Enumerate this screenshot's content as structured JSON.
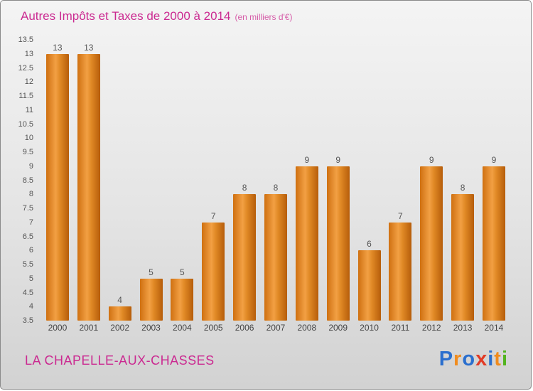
{
  "header": {
    "title": "Autres Impôts et Taxes de 2000 à 2014",
    "subtitle": "(en milliers d'€)"
  },
  "footer": {
    "location": "LA CHAPELLE-AUX-CHASSES",
    "logo_letters": [
      {
        "char": "P",
        "color": "#2b6fce"
      },
      {
        "char": "r",
        "color": "#f08c1e"
      },
      {
        "char": "o",
        "color": "#2b6fce"
      },
      {
        "char": "x",
        "color": "#e23b26"
      },
      {
        "char": "i",
        "color": "#2b6fce"
      },
      {
        "char": "t",
        "color": "#f08c1e"
      },
      {
        "char": "i",
        "color": "#52b41e"
      }
    ]
  },
  "colors": {
    "title_text": "#cb2a91",
    "bar_left": "#cf7011",
    "bar_highlight": "#f2a044",
    "bar_right": "#b65d0a",
    "axis_text": "#555555",
    "background_top": "#f4f4f4",
    "background_bottom": "#d2d2d2"
  },
  "chart_data": {
    "type": "bar",
    "title": "Autres Impôts et Taxes de 2000 à 2014",
    "subtitle": "(en milliers d'€)",
    "categories": [
      "2000",
      "2001",
      "2002",
      "2003",
      "2004",
      "2005",
      "2006",
      "2007",
      "2008",
      "2009",
      "2010",
      "2011",
      "2012",
      "2013",
      "2014"
    ],
    "values": [
      13,
      13,
      4,
      5,
      5,
      7,
      8,
      8,
      9,
      9,
      6,
      7,
      9,
      8,
      9
    ],
    "xlabel": "",
    "ylabel": "",
    "ylim": [
      3.5,
      13.5
    ],
    "ytick_step": 0.5,
    "grid": false,
    "legend": false,
    "bar_baseline": 3.5
  }
}
